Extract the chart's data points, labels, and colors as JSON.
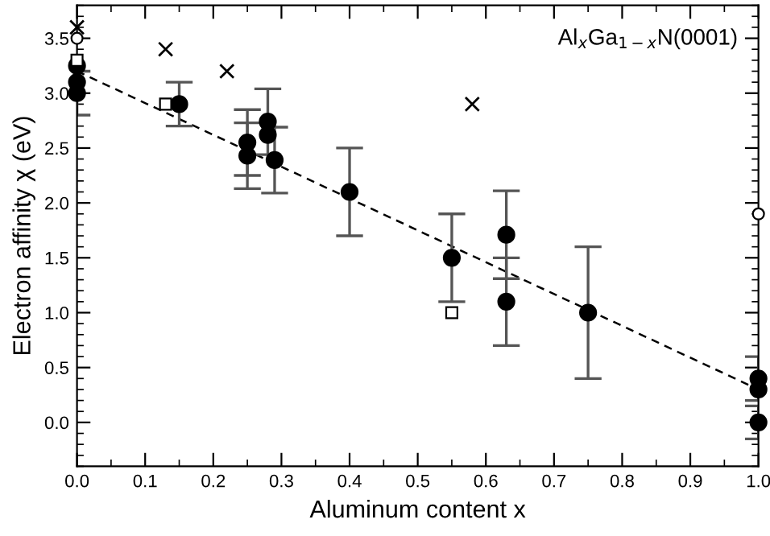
{
  "chart_data": {
    "type": "scatter",
    "xlabel": "Aluminum content x",
    "ylabel": "Electron affinity χ (eV)",
    "annotations": [
      "Al$_{x}$Ga$_{1−x}$N(0001)"
    ],
    "xlim": [
      0.0,
      1.0
    ],
    "ylim": [
      -0.4,
      3.8
    ],
    "xticks": [
      {
        "value": 0,
        "label": "0.0"
      },
      0.1,
      0.2,
      0.3,
      0.4,
      0.5,
      0.6,
      0.7,
      0.8,
      0.9,
      {
        "value": 1,
        "label": "1.0"
      }
    ],
    "yticks": [
      {
        "value": 0,
        "label": "0.0"
      },
      0.5,
      {
        "value": 1,
        "label": "1.0"
      },
      1.5,
      {
        "value": 2,
        "label": "2.0"
      },
      2.5,
      {
        "value": 3,
        "label": "3.0"
      },
      3.5
    ],
    "grid": false,
    "legend": false,
    "series": [
      {
        "type": "scatter",
        "marker": "circle",
        "color": "#000000",
        "x": [
          0.0,
          0.0,
          0.0,
          0.15,
          0.25,
          0.25,
          0.28,
          0.28,
          0.29,
          0.4,
          0.55,
          0.63,
          0.63,
          0.75,
          1.0,
          1.0,
          1.0
        ],
        "values": [
          3.0,
          3.1,
          3.25,
          2.9,
          2.55,
          2.43,
          2.74,
          2.62,
          2.39,
          2.1,
          1.5,
          1.71,
          1.1,
          1.0,
          0.4,
          0.3,
          0.0
        ],
        "errors": [
          0.2,
          null,
          null,
          0.2,
          0.3,
          0.3,
          0.3,
          null,
          0.3,
          0.4,
          0.4,
          0.4,
          0.4,
          0.6,
          0.2,
          null,
          0.15
        ]
      },
      {
        "type": "scatter",
        "marker": "cross",
        "color": "#000000",
        "x": [
          0.0,
          0.13,
          0.22,
          0.58
        ],
        "values": [
          3.6,
          3.4,
          3.2,
          2.9
        ]
      },
      {
        "type": "scatter",
        "marker": "square",
        "color": "#000000",
        "x": [
          0.0,
          0.13,
          0.55
        ],
        "values": [
          3.3,
          2.9,
          1.0
        ]
      },
      {
        "type": "scatter",
        "marker": "open_circle",
        "color": "#000000",
        "x": [
          0.0,
          1.0
        ],
        "values": [
          3.5,
          1.9
        ]
      },
      {
        "type": "line",
        "line_style": "dashed",
        "color": "#000000",
        "x": [
          0.0,
          1.0
        ],
        "values": [
          3.2,
          0.3
        ]
      }
    ]
  }
}
